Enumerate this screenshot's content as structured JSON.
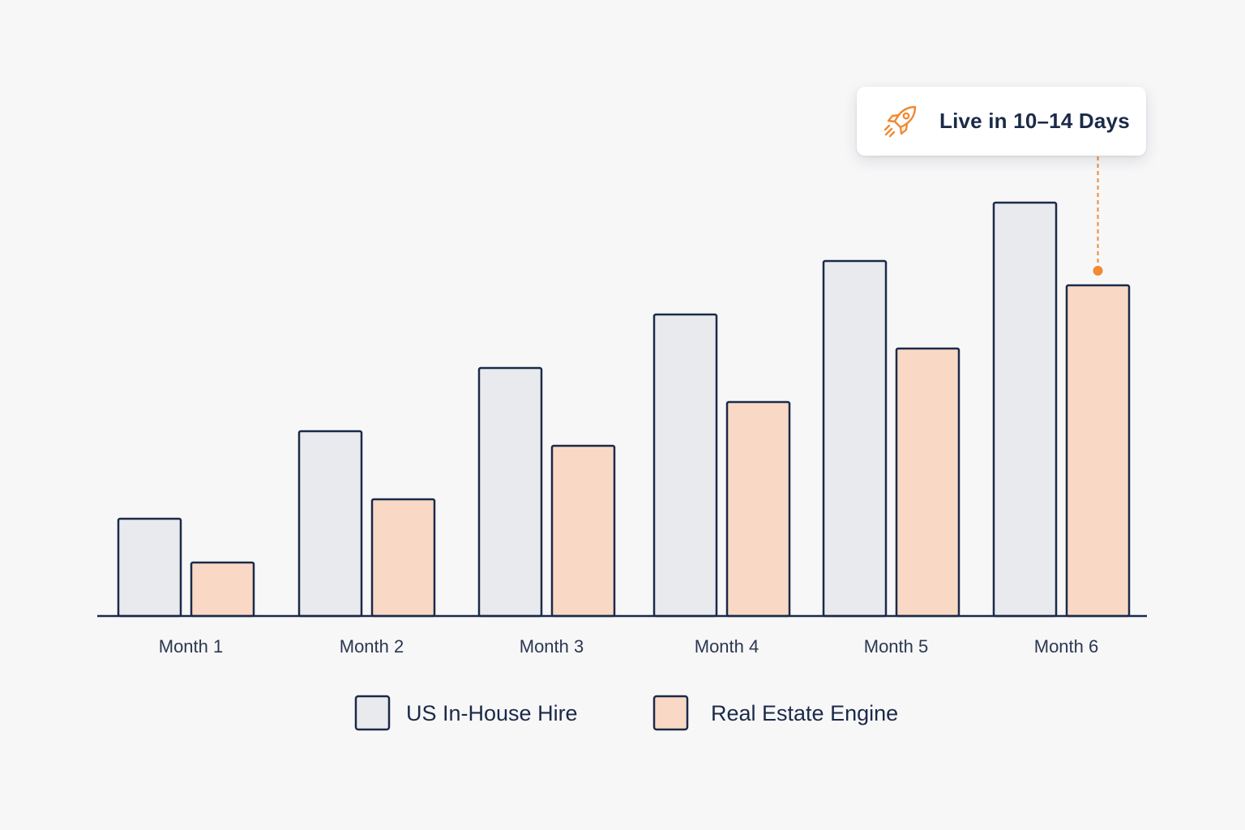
{
  "chart_data": {
    "type": "bar",
    "categories": [
      "Month 1",
      "Month 2",
      "Month 3",
      "Month 4",
      "Month 5",
      "Month 6"
    ],
    "series": [
      {
        "name": "US In-House Hire",
        "values": [
          1.0,
          1.9,
          2.55,
          3.1,
          3.65,
          4.25
        ],
        "color": "#e9eaee"
      },
      {
        "name": "Real Estate Engine",
        "values": [
          0.55,
          1.2,
          1.75,
          2.2,
          2.75,
          3.4
        ],
        "color": "#f9d9c5"
      }
    ],
    "ylim": [
      0,
      5
    ],
    "grid": false,
    "legend": "bottom-center",
    "outline_color": "#1b2a48",
    "annotation": {
      "text": "Live in 10–14 Days",
      "icon": "rocket-icon",
      "target": {
        "series": 1,
        "category": 5
      },
      "accent": "#f08a34"
    }
  }
}
